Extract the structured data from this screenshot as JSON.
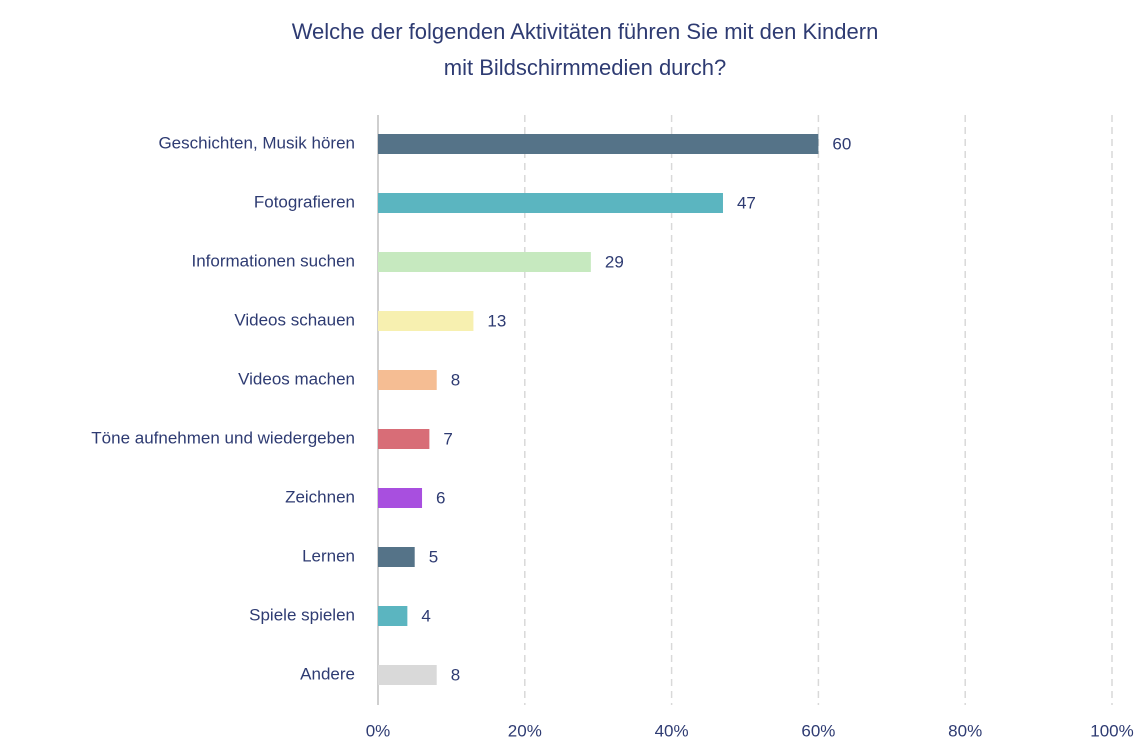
{
  "chart_data": {
    "type": "bar",
    "orientation": "horizontal",
    "title": "Welche der folgenden Aktivitäten führen Sie mit den Kindern mit Bildschirmmedien durch?",
    "categories": [
      "Geschichten, Musik hören",
      "Fotografieren",
      "Informationen suchen",
      "Videos schauen",
      "Videos machen",
      "Töne aufnehmen und wiedergeben",
      "Zeichnen",
      "Lernen",
      "Spiele spielen",
      "Andere"
    ],
    "values": [
      60,
      47,
      29,
      13,
      8,
      7,
      6,
      5,
      4,
      8
    ],
    "colors": [
      "#557388",
      "#5bb5c0",
      "#c6e9bf",
      "#f7f0b0",
      "#f5bd93",
      "#d86d77",
      "#a84fdf",
      "#557388",
      "#5bb5c0",
      "#d9d9d9"
    ],
    "xlim": [
      0,
      100
    ],
    "xticks": [
      {
        "value": 0,
        "label": "0%"
      },
      {
        "value": 20,
        "label": "20%"
      },
      {
        "value": 40,
        "label": "40%"
      },
      {
        "value": 60,
        "label": "60%"
      },
      {
        "value": 80,
        "label": "80%"
      },
      {
        "value": 100,
        "label": "100%"
      }
    ],
    "grid": true
  }
}
